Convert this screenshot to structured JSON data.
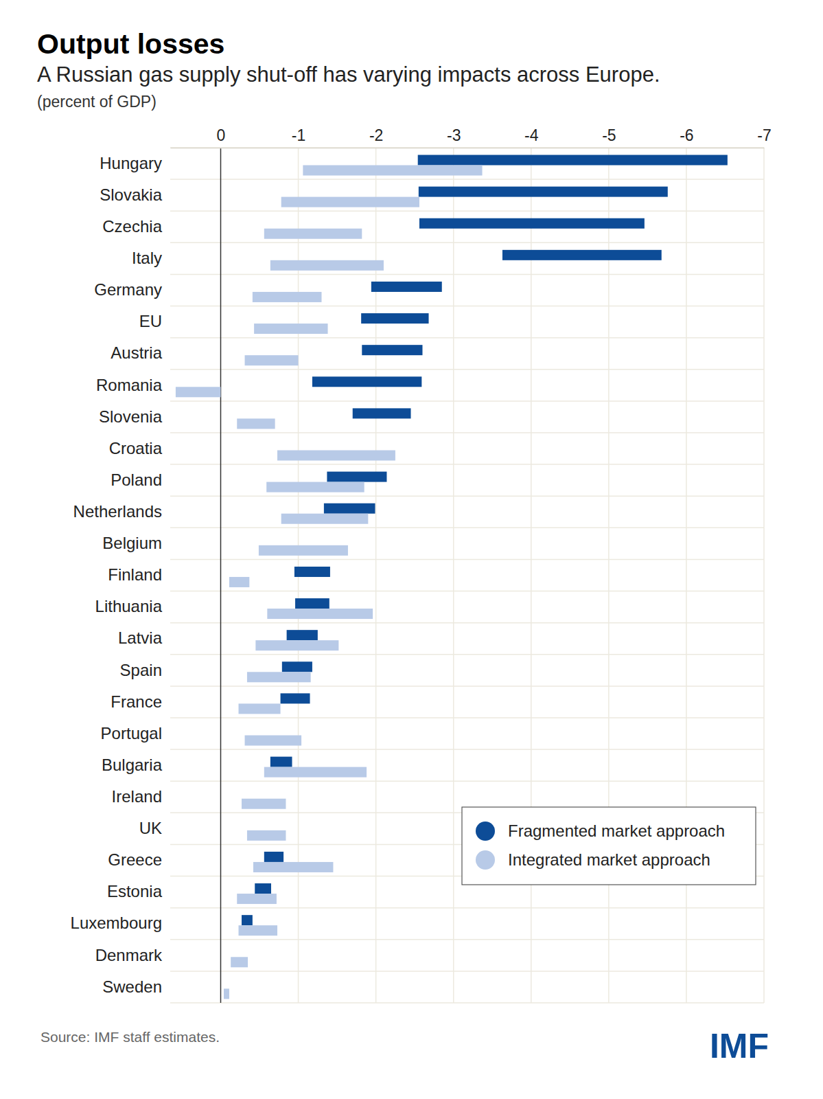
{
  "chart_data": {
    "type": "bar",
    "orientation": "horizontal",
    "title": "Output losses",
    "subtitle": "A Russian gas supply shut-off has varying impacts across Europe.",
    "unit_label": "(percent of GDP)",
    "source": "Source: IMF staff estimates.",
    "brand": "IMF",
    "categories": [
      "Hungary",
      "Slovakia",
      "Czechia",
      "Italy",
      "Germany",
      "EU",
      "Austria",
      "Romania",
      "Slovenia",
      "Croatia",
      "Poland",
      "Netherlands",
      "Belgium",
      "Finland",
      "Lithuania",
      "Latvia",
      "Spain",
      "France",
      "Portugal",
      "Bulgaria",
      "Ireland",
      "UK",
      "Greece",
      "Estonia",
      "Luxembourg",
      "Denmark",
      "Sweden"
    ],
    "series": [
      {
        "name": "Fragmented market approach",
        "color": "#0d4c97",
        "values": [
          [
            -2.54,
            -6.53
          ],
          [
            -2.55,
            -5.76
          ],
          [
            -2.56,
            -5.46
          ],
          [
            -3.63,
            -5.68
          ],
          [
            -1.94,
            -2.85
          ],
          [
            -1.81,
            -2.68
          ],
          [
            -1.82,
            -2.6
          ],
          [
            -1.18,
            -2.59
          ],
          [
            -1.7,
            -2.45
          ],
          null,
          [
            -1.37,
            -2.14
          ],
          [
            -1.33,
            -1.99
          ],
          null,
          [
            -0.95,
            -1.41
          ],
          [
            -0.96,
            -1.4
          ],
          [
            -0.85,
            -1.25
          ],
          [
            -0.79,
            -1.18
          ],
          [
            -0.77,
            -1.15
          ],
          null,
          [
            -0.64,
            -0.92
          ],
          null,
          null,
          [
            -0.56,
            -0.81
          ],
          [
            -0.44,
            -0.65
          ],
          [
            -0.27,
            -0.41
          ],
          null,
          null
        ]
      },
      {
        "name": "Integrated market approach",
        "color": "#b8cae7",
        "values": [
          [
            -1.06,
            -3.37
          ],
          [
            -0.78,
            -2.56
          ],
          [
            -0.56,
            -1.82
          ],
          [
            -0.64,
            -2.1
          ],
          [
            -0.41,
            -1.3
          ],
          [
            -0.43,
            -1.38
          ],
          [
            -0.31,
            -1.0
          ],
          [
            0.58,
            0
          ],
          [
            -0.21,
            -0.7
          ],
          [
            -0.73,
            -2.25
          ],
          [
            -0.59,
            -1.85
          ],
          [
            -0.78,
            -1.9
          ],
          [
            -0.49,
            -1.64
          ],
          [
            -0.11,
            -0.37
          ],
          [
            -0.6,
            -1.96
          ],
          [
            -0.45,
            -1.52
          ],
          [
            -0.34,
            -1.16
          ],
          [
            -0.23,
            -0.77
          ],
          [
            -0.31,
            -1.04
          ],
          [
            -0.56,
            -1.88
          ],
          [
            -0.27,
            -0.84
          ],
          [
            -0.34,
            -0.84
          ],
          [
            -0.42,
            -1.45
          ],
          [
            -0.21,
            -0.72
          ],
          [
            -0.23,
            -0.73
          ],
          [
            -0.13,
            -0.35
          ],
          [
            -0.04,
            -0.11
          ]
        ]
      }
    ],
    "xlim": [
      0.65,
      -7
    ],
    "xticks": [
      0,
      -1,
      -2,
      -3,
      -4,
      -5,
      -6,
      -7
    ],
    "grid": true,
    "legend": "bottom-right"
  }
}
